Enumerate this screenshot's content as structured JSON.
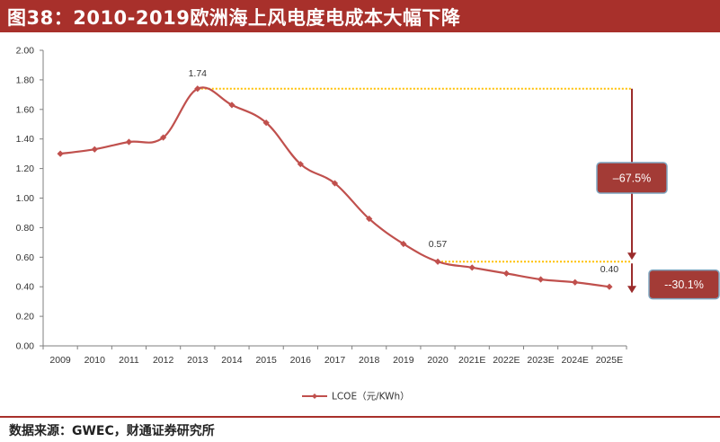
{
  "header": {
    "title": "图38：2010-2019欧洲海上风电度电成本大幅下降"
  },
  "footer": {
    "source": "数据来源：GWEC，财通证券研究所"
  },
  "colors": {
    "accent": "#a8302b",
    "line": "#c0504d",
    "dotted": "#ffc000",
    "arrow": "#9b2c2c",
    "callout": "#a33b36"
  },
  "chart_data": {
    "type": "line",
    "categories": [
      "2009",
      "2010",
      "2011",
      "2012",
      "2013",
      "2014",
      "2015",
      "2016",
      "2017",
      "2018",
      "2019",
      "2020",
      "2021E",
      "2022E",
      "2023E",
      "2024E",
      "2025E"
    ],
    "series": [
      {
        "name": "LCOE（元/KWh）",
        "values": [
          1.3,
          1.33,
          1.38,
          1.41,
          1.74,
          1.63,
          1.51,
          1.23,
          1.1,
          0.86,
          0.69,
          0.57,
          0.53,
          0.49,
          0.45,
          0.43,
          0.4
        ]
      }
    ],
    "ylim": [
      0,
      2.0
    ],
    "yticks": [
      "0.00",
      "0.20",
      "0.40",
      "0.60",
      "0.80",
      "1.00",
      "1.20",
      "1.40",
      "1.60",
      "1.80",
      "2.00"
    ],
    "grid": false,
    "legend": "bottom-center",
    "annotations": [
      {
        "text": "1.74",
        "category": "2013",
        "value": 1.74
      },
      {
        "text": "0.57",
        "category": "2020",
        "value": 0.57
      },
      {
        "text": "0.40",
        "category": "2025E",
        "value": 0.4
      }
    ],
    "callouts": [
      {
        "text": "–67.5%",
        "from": 1.74,
        "to": 0.57
      },
      {
        "text": "--30.1%",
        "from": 0.57,
        "to": 0.4
      }
    ]
  }
}
